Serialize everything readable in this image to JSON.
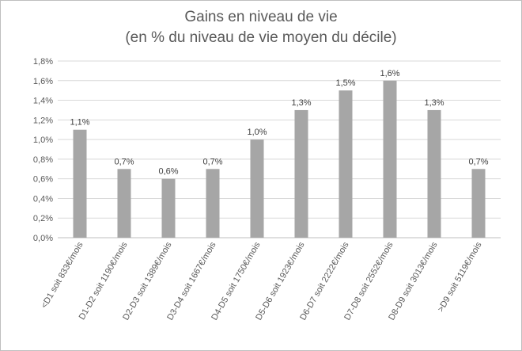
{
  "chart_data": {
    "type": "bar",
    "title": "Gains en niveau de vie",
    "subtitle": "(en % du niveau de vie moyen du décile)",
    "categories": [
      "<D1 soit 833€/mois",
      "D1-D2 soit 1190€/mois",
      "D2-D3 soit 1389€/mois",
      "D3-D4 soit 1667€/mois",
      "D4-D5 soit 1750€/mois",
      "D5-D6 soit 1923€/mois",
      "D6-D7 soit 2222€/mois",
      "D7-D8 soit 2552€/mois",
      "D8-D9 soit 3013€/mois",
      ">D9 soit 5119€/mois"
    ],
    "values": [
      1.1,
      0.7,
      0.6,
      0.7,
      1.0,
      1.3,
      1.5,
      1.6,
      1.3,
      0.7
    ],
    "data_labels": [
      "1,1%",
      "0,7%",
      "0,6%",
      "0,7%",
      "1,0%",
      "1,3%",
      "1,5%",
      "1,6%",
      "1,3%",
      "0,7%"
    ],
    "y_ticks": [
      0,
      0.2,
      0.4,
      0.6,
      0.8,
      1.0,
      1.2,
      1.4,
      1.6,
      1.8
    ],
    "y_tick_labels": [
      "0,0%",
      "0,2%",
      "0,4%",
      "0,6%",
      "0,8%",
      "1,0%",
      "1,2%",
      "1,4%",
      "1,6%",
      "1,8%"
    ],
    "ylim": [
      0,
      1.8
    ],
    "grid": true,
    "legend": "none",
    "colors": {
      "bar": "#a6a6a6",
      "grid": "#d9d9d9",
      "text": "#595959"
    }
  }
}
